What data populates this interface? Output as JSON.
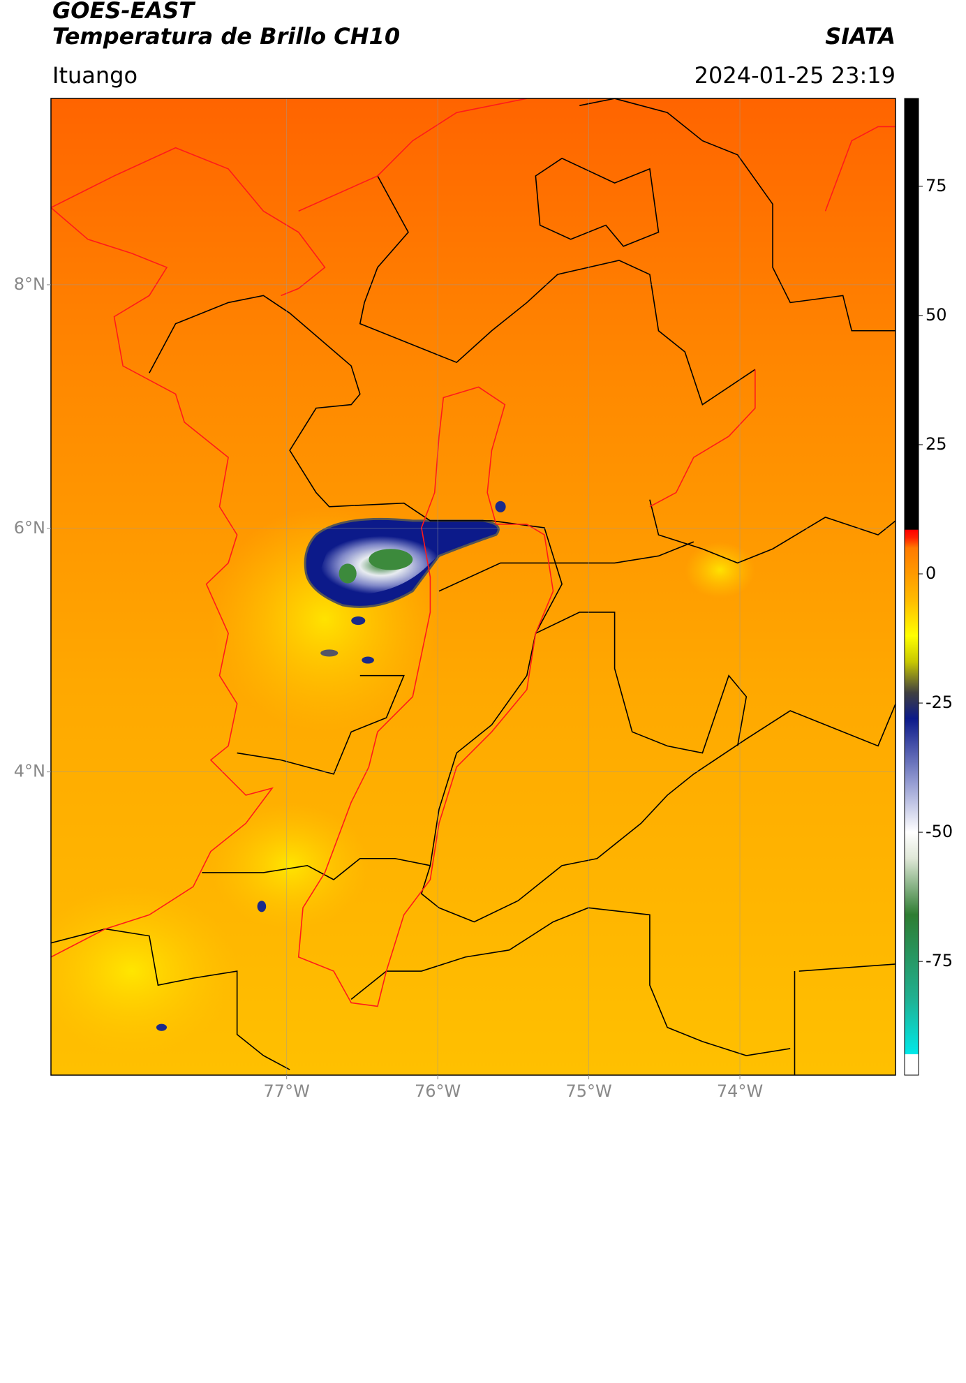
{
  "header": {
    "title": "GOES-EAST",
    "subtitle": "Temperatura de Brillo CH10",
    "source": "SIATA",
    "location": "Ituango",
    "datetime": "2024-01-25 23:19"
  },
  "map": {
    "xlim": [
      -78.56,
      -72.97
    ],
    "ylim": [
      1.51,
      9.53
    ],
    "xticks": [
      {
        "value": -77,
        "label": "77°W"
      },
      {
        "value": -76,
        "label": "76°W"
      },
      {
        "value": -75,
        "label": "75°W"
      },
      {
        "value": -74,
        "label": "74°W"
      }
    ],
    "yticks": [
      {
        "value": 8,
        "label": "8°N"
      },
      {
        "value": 6,
        "label": "6°N"
      },
      {
        "value": 4,
        "label": "4°N"
      }
    ],
    "grid": true
  },
  "colorbar": {
    "lim": [
      -97,
      92
    ],
    "ticks": [
      -75,
      -50,
      -25,
      0,
      25,
      50,
      75
    ],
    "stops": [
      {
        "value": -97,
        "color": "#ffffff"
      },
      {
        "value": -93,
        "color": "#ffffff"
      },
      {
        "value": -92.9,
        "color": "#00e8e8"
      },
      {
        "value": -82,
        "color": "#20b090"
      },
      {
        "value": -66,
        "color": "#2e7d32"
      },
      {
        "value": -55,
        "color": "#e0e8d8"
      },
      {
        "value": -50,
        "color": "#ffffff"
      },
      {
        "value": -40,
        "color": "#9098d0"
      },
      {
        "value": -28,
        "color": "#0c1a8a"
      },
      {
        "value": -23,
        "color": "#404040"
      },
      {
        "value": -17,
        "color": "#c8c800"
      },
      {
        "value": -12,
        "color": "#ffff00"
      },
      {
        "value": -5,
        "color": "#ffbb00"
      },
      {
        "value": 5,
        "color": "#ff7a00"
      },
      {
        "value": 7,
        "color": "#ff2000"
      },
      {
        "value": 8.5,
        "color": "#ff0000"
      },
      {
        "value": 8.6,
        "color": "#000000"
      },
      {
        "value": 92,
        "color": "#000000"
      }
    ]
  }
}
